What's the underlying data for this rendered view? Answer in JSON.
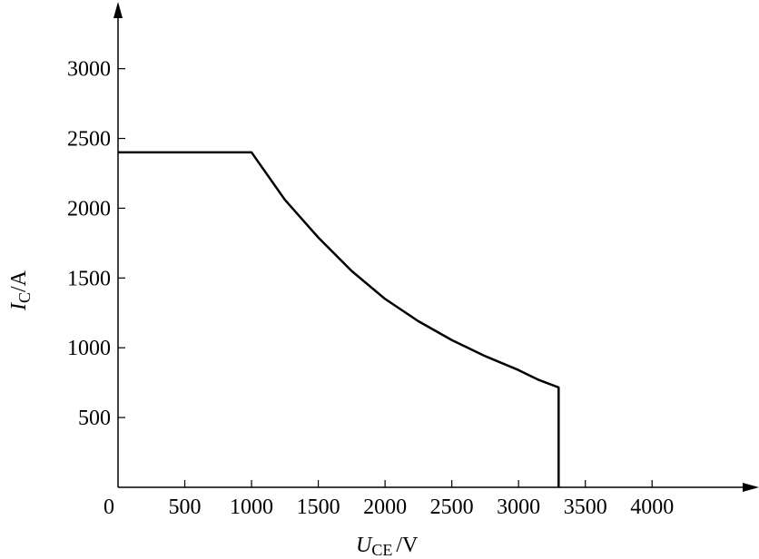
{
  "chart_data": {
    "type": "line",
    "x_label": {
      "symbol": "U",
      "subscript": "CE",
      "unit": "/V"
    },
    "y_label": {
      "symbol": "I",
      "subscript": "C",
      "unit": "/A"
    },
    "x": [
      0,
      1000,
      1250,
      1500,
      1750,
      2000,
      2250,
      2500,
      2750,
      3000,
      3150,
      3300,
      3300
    ],
    "series": [
      {
        "color": "#000000",
        "values": [
          2400,
          2400,
          2060,
          1790,
          1550,
          1350,
          1190,
          1055,
          940,
          840,
          770,
          716,
          0
        ]
      }
    ],
    "xlim": [
      0,
      4760
    ],
    "ylim": [
      0,
      3440
    ],
    "xticks": [
      0,
      500,
      1000,
      1500,
      2000,
      2500,
      3000,
      3500,
      4000
    ],
    "yticks": [
      500,
      1000,
      1500,
      2000,
      2500,
      3000
    ]
  }
}
